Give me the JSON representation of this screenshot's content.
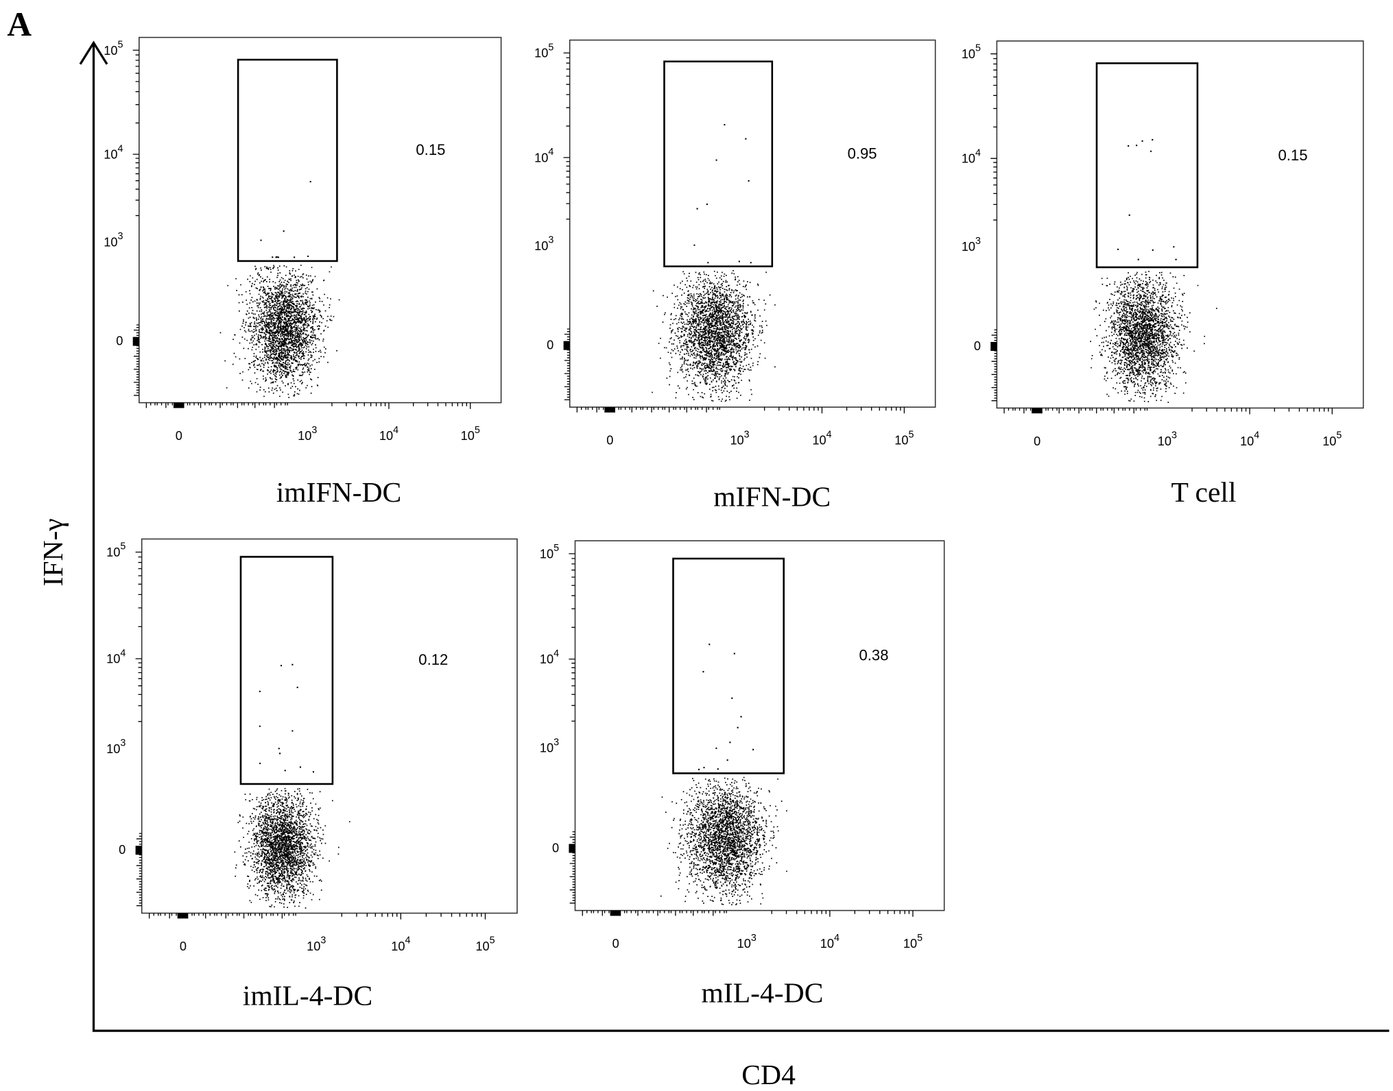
{
  "figure_label": "A",
  "y_axis_label": "IFN-γ",
  "x_axis_label": "CD4",
  "x_ticks": [
    "0",
    {
      "base": "10",
      "exp": "3"
    },
    {
      "base": "10",
      "exp": "4"
    },
    {
      "base": "10",
      "exp": "5"
    }
  ],
  "y_ticks": [
    "0",
    {
      "base": "10",
      "exp": "3"
    },
    {
      "base": "10",
      "exp": "4"
    },
    {
      "base": "10",
      "exp": "5"
    }
  ],
  "panels": [
    {
      "title": "imIFN-DC",
      "gate_percent": "0.15"
    },
    {
      "title": "mIFN-DC",
      "gate_percent": "0.95"
    },
    {
      "title": "T cell",
      "gate_percent": "0.15"
    },
    {
      "title": "imIL-4-DC",
      "gate_percent": "0.12"
    },
    {
      "title": "mIL-4-DC",
      "gate_percent": "0.38"
    }
  ]
}
